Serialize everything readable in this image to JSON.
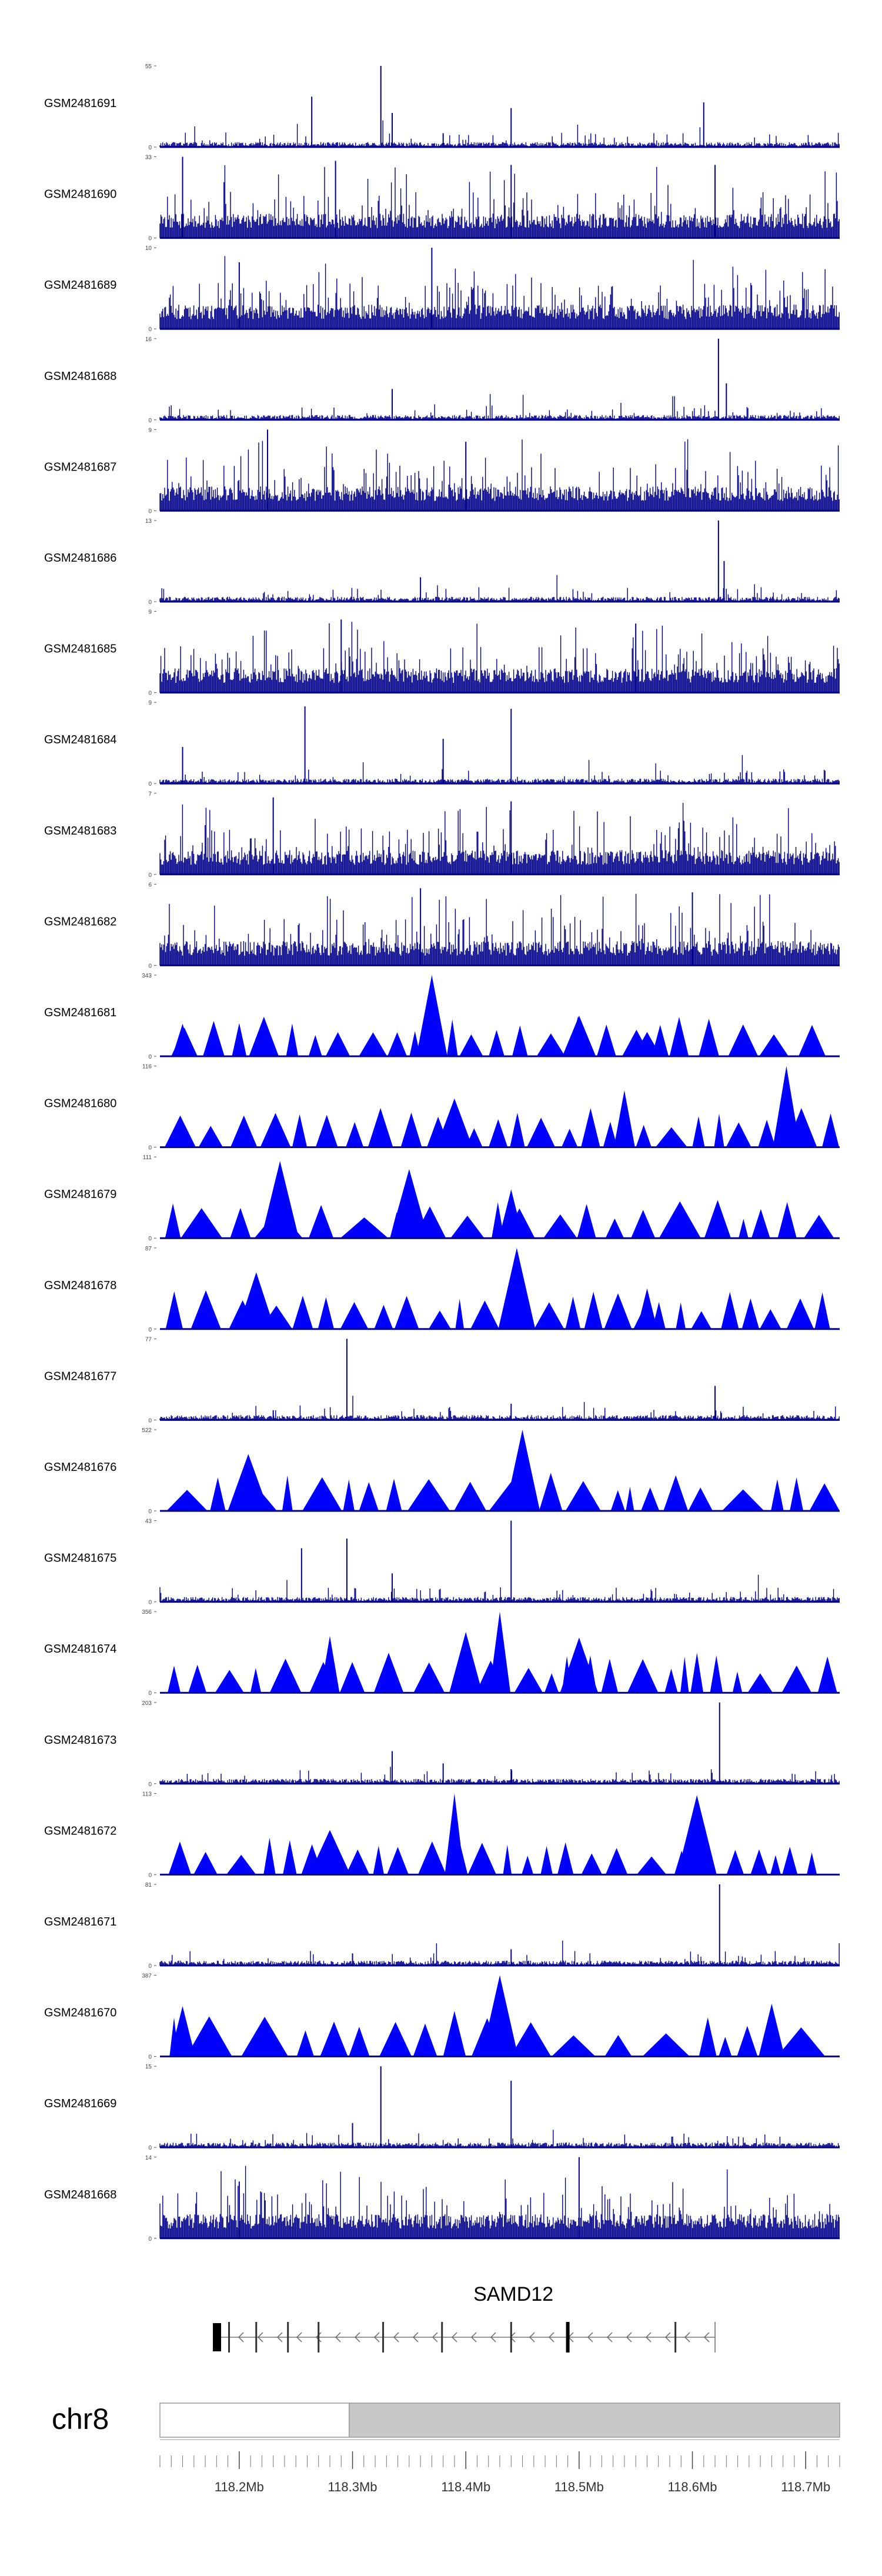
{
  "chart_data": {
    "type": "genome-track",
    "title": "",
    "chromosome": "chr8",
    "gene": "SAMD12",
    "x_range_mb": [
      118.13,
      118.73
    ],
    "x_ticks": [
      "118.2Mb",
      "118.3Mb",
      "118.4Mb",
      "118.5Mb",
      "118.6Mb",
      "118.7Mb"
    ],
    "x_tick_values": [
      118.2,
      118.3,
      118.4,
      118.5,
      118.6,
      118.7
    ],
    "ideogram_band_start_mb": 118.297,
    "tracks": [
      {
        "name": "GSM2481691",
        "ymax": 55,
        "style": "spiky",
        "peaks": [
          {
            "x": 118.44,
            "v": 0.48
          },
          {
            "x": 118.335,
            "v": 0.42
          },
          {
            "x": 118.61,
            "v": 0.55
          },
          {
            "x": 118.38,
            "v": 0.17
          },
          {
            "x": 118.264,
            "v": 0.62
          },
          {
            "x": 118.325,
            "v": 1.0
          }
        ]
      },
      {
        "name": "GSM2481690",
        "ymax": 33,
        "style": "dense",
        "peaks": [
          {
            "x": 118.15,
            "v": 1.0
          },
          {
            "x": 118.285,
            "v": 0.95
          },
          {
            "x": 118.44,
            "v": 0.9
          },
          {
            "x": 118.62,
            "v": 0.9
          }
        ]
      },
      {
        "name": "GSM2481689",
        "ymax": 10,
        "style": "dense",
        "peaks": [
          {
            "x": 118.37,
            "v": 1.0
          },
          {
            "x": 118.2,
            "v": 0.82
          }
        ]
      },
      {
        "name": "GSM2481688",
        "ymax": 16,
        "style": "spiky",
        "peaks": [
          {
            "x": 118.623,
            "v": 1.0
          },
          {
            "x": 118.63,
            "v": 0.45
          },
          {
            "x": 118.335,
            "v": 0.38
          }
        ]
      },
      {
        "name": "GSM2481687",
        "ymax": 9,
        "style": "dense",
        "peaks": [
          {
            "x": 118.225,
            "v": 1.0
          },
          {
            "x": 118.4,
            "v": 0.85
          }
        ]
      },
      {
        "name": "GSM2481686",
        "ymax": 13,
        "style": "spiky",
        "peaks": [
          {
            "x": 118.623,
            "v": 1.0
          },
          {
            "x": 118.628,
            "v": 0.5
          },
          {
            "x": 118.36,
            "v": 0.3
          }
        ]
      },
      {
        "name": "GSM2481685",
        "ymax": 9,
        "style": "dense",
        "peaks": [
          {
            "x": 118.29,
            "v": 0.9
          },
          {
            "x": 118.55,
            "v": 0.85
          }
        ]
      },
      {
        "name": "GSM2481684",
        "ymax": 9,
        "style": "spiky",
        "peaks": [
          {
            "x": 118.258,
            "v": 0.95
          },
          {
            "x": 118.44,
            "v": 0.92
          },
          {
            "x": 118.38,
            "v": 0.55
          },
          {
            "x": 118.15,
            "v": 0.45
          }
        ]
      },
      {
        "name": "GSM2481683",
        "ymax": 7,
        "style": "dense",
        "peaks": [
          {
            "x": 118.23,
            "v": 0.95
          },
          {
            "x": 118.44,
            "v": 0.9
          }
        ]
      },
      {
        "name": "GSM2481682",
        "ymax": 6,
        "style": "dense",
        "peaks": [
          {
            "x": 118.36,
            "v": 0.95
          },
          {
            "x": 118.6,
            "v": 0.9
          }
        ]
      },
      {
        "name": "GSM2481681",
        "ymax": 343,
        "style": "triangles",
        "peaks": [
          {
            "x": 118.37,
            "v": 1.0
          },
          {
            "x": 118.15,
            "v": 0.4
          },
          {
            "x": 118.5,
            "v": 0.5
          },
          {
            "x": 118.56,
            "v": 0.3
          }
        ]
      },
      {
        "name": "GSM2481680",
        "ymax": 116,
        "style": "triangles",
        "peaks": [
          {
            "x": 118.683,
            "v": 1.0
          },
          {
            "x": 118.39,
            "v": 0.6
          },
          {
            "x": 118.54,
            "v": 0.7
          }
        ]
      },
      {
        "name": "GSM2481679",
        "ymax": 111,
        "style": "triangles",
        "peaks": [
          {
            "x": 118.236,
            "v": 0.95
          },
          {
            "x": 118.44,
            "v": 0.6
          },
          {
            "x": 118.35,
            "v": 0.85
          }
        ]
      },
      {
        "name": "GSM2481678",
        "ymax": 87,
        "style": "triangles",
        "peaks": [
          {
            "x": 118.445,
            "v": 1.0
          },
          {
            "x": 118.215,
            "v": 0.7
          },
          {
            "x": 118.56,
            "v": 0.5
          }
        ]
      },
      {
        "name": "GSM2481677",
        "ymax": 77,
        "style": "spiky",
        "peaks": [
          {
            "x": 118.295,
            "v": 1.0
          },
          {
            "x": 118.62,
            "v": 0.42
          },
          {
            "x": 118.44,
            "v": 0.2
          },
          {
            "x": 118.23,
            "v": 0.12
          }
        ]
      },
      {
        "name": "GSM2481676",
        "ymax": 522,
        "style": "triangles",
        "peaks": [
          {
            "x": 118.45,
            "v": 1.0
          },
          {
            "x": 118.208,
            "v": 0.7
          }
        ]
      },
      {
        "name": "GSM2481675",
        "ymax": 43,
        "style": "spiky",
        "peaks": [
          {
            "x": 118.44,
            "v": 1.0
          },
          {
            "x": 118.295,
            "v": 0.78
          },
          {
            "x": 118.255,
            "v": 0.66
          },
          {
            "x": 118.335,
            "v": 0.35
          }
        ]
      },
      {
        "name": "GSM2481674",
        "ymax": 356,
        "style": "triangles",
        "peaks": [
          {
            "x": 118.43,
            "v": 1.0
          },
          {
            "x": 118.28,
            "v": 0.7
          },
          {
            "x": 118.5,
            "v": 0.68
          },
          {
            "x": 118.4,
            "v": 0.75
          }
        ]
      },
      {
        "name": "GSM2481673",
        "ymax": 203,
        "style": "spiky",
        "peaks": [
          {
            "x": 118.624,
            "v": 1.0
          },
          {
            "x": 118.335,
            "v": 0.4
          },
          {
            "x": 118.38,
            "v": 0.25
          },
          {
            "x": 118.44,
            "v": 0.18
          }
        ]
      },
      {
        "name": "GSM2481672",
        "ymax": 113,
        "style": "triangles",
        "peaks": [
          {
            "x": 118.39,
            "v": 1.0
          },
          {
            "x": 118.604,
            "v": 0.98
          },
          {
            "x": 118.28,
            "v": 0.55
          }
        ]
      },
      {
        "name": "GSM2481671",
        "ymax": 81,
        "style": "spiky",
        "peaks": [
          {
            "x": 118.624,
            "v": 1.0
          },
          {
            "x": 118.44,
            "v": 0.2
          },
          {
            "x": 118.3,
            "v": 0.15
          }
        ]
      },
      {
        "name": "GSM2481670",
        "ymax": 387,
        "style": "triangles",
        "peaks": [
          {
            "x": 118.43,
            "v": 1.0
          },
          {
            "x": 118.39,
            "v": 0.56
          },
          {
            "x": 118.67,
            "v": 0.65
          },
          {
            "x": 118.15,
            "v": 0.62
          }
        ]
      },
      {
        "name": "GSM2481669",
        "ymax": 15,
        "style": "spiky",
        "peaks": [
          {
            "x": 118.325,
            "v": 1.0
          },
          {
            "x": 118.44,
            "v": 0.82
          },
          {
            "x": 118.3,
            "v": 0.3
          }
        ]
      },
      {
        "name": "GSM2481668",
        "ymax": 14,
        "style": "dense",
        "peaks": [
          {
            "x": 118.5,
            "v": 1.0
          },
          {
            "x": 118.2,
            "v": 0.7
          }
        ]
      }
    ],
    "gene_model": {
      "strand": "-",
      "start_mb": 118.184,
      "end_mb": 118.62,
      "exons_mb": [
        118.191,
        118.215,
        118.243,
        118.27,
        118.327,
        118.379,
        118.44,
        118.49,
        118.585
      ]
    },
    "colors": {
      "signal": "#00008b",
      "triangle": "#0000ff",
      "gene": "#000000",
      "ideogram_band": "#c8c8c8"
    }
  }
}
